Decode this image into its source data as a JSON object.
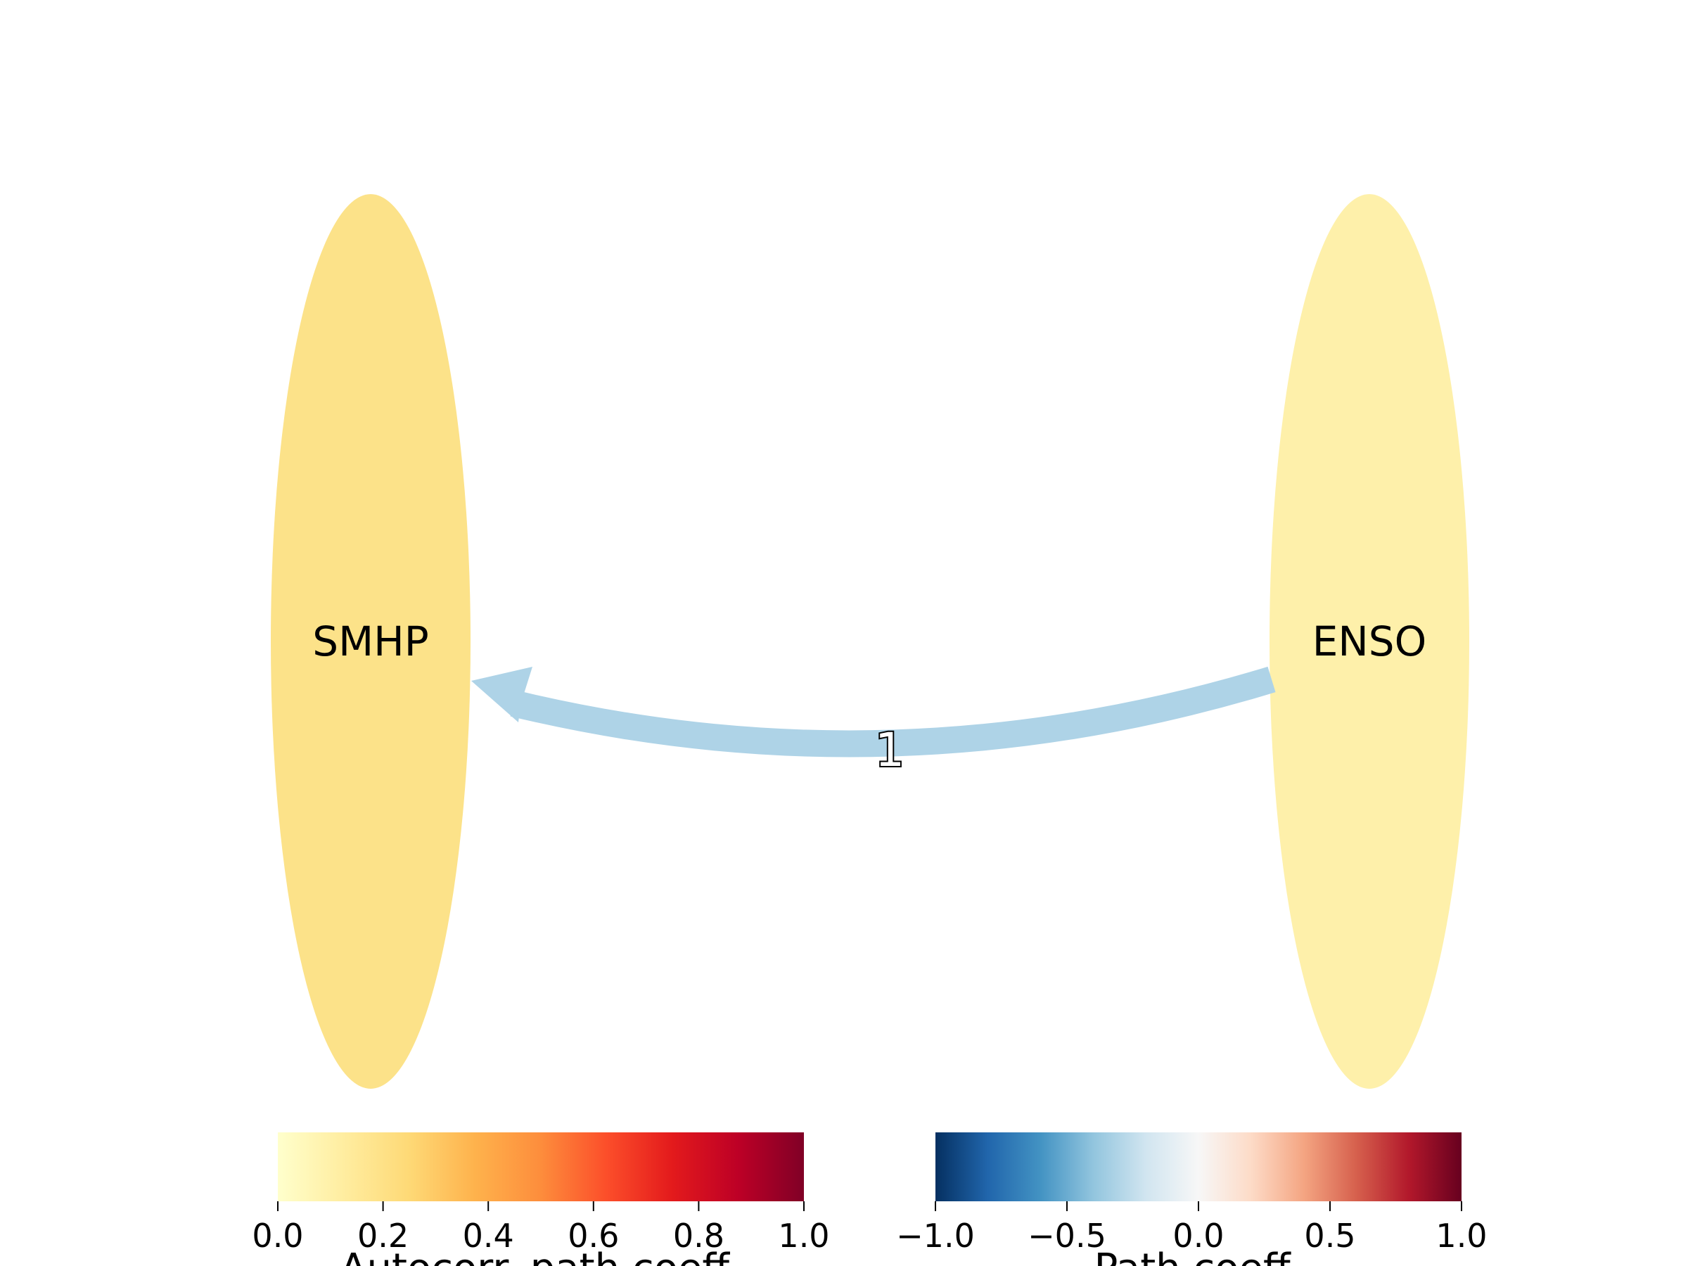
{
  "nodes": [
    {
      "id": "smhp",
      "label": "SMHP",
      "color": "#fce289",
      "autocorr": 0.2
    },
    {
      "id": "enso",
      "label": "ENSO",
      "color": "#fef0aa",
      "autocorr": 0.1
    }
  ],
  "edges": [
    {
      "from": "ENSO",
      "to": "SMHP",
      "label": "1",
      "color": "#aed3e7",
      "path_coeff": -0.3
    }
  ],
  "colorbars": [
    {
      "id": "autocorr",
      "label": "Autocorr. path coeff.",
      "ticks": [
        "0.0",
        "0.2",
        "0.4",
        "0.6",
        "0.8",
        "1.0"
      ],
      "range": [
        0.0,
        1.0
      ],
      "stops": [
        "#ffffcc",
        "#ffeda0",
        "#fed976",
        "#feb24c",
        "#fd8d3c",
        "#fc4e2a",
        "#e31a1c",
        "#bd0026",
        "#800026"
      ]
    },
    {
      "id": "path",
      "label": "Path coeff.",
      "ticks": [
        "−1.0",
        "−0.5",
        "0.0",
        "0.5",
        "1.0"
      ],
      "range": [
        -1.0,
        1.0
      ],
      "stops": [
        "#053061",
        "#2166ac",
        "#4393c3",
        "#92c5de",
        "#d1e5f0",
        "#f7f7f7",
        "#fddbc7",
        "#f4a582",
        "#d6604d",
        "#b2182b",
        "#67001f"
      ]
    }
  ]
}
